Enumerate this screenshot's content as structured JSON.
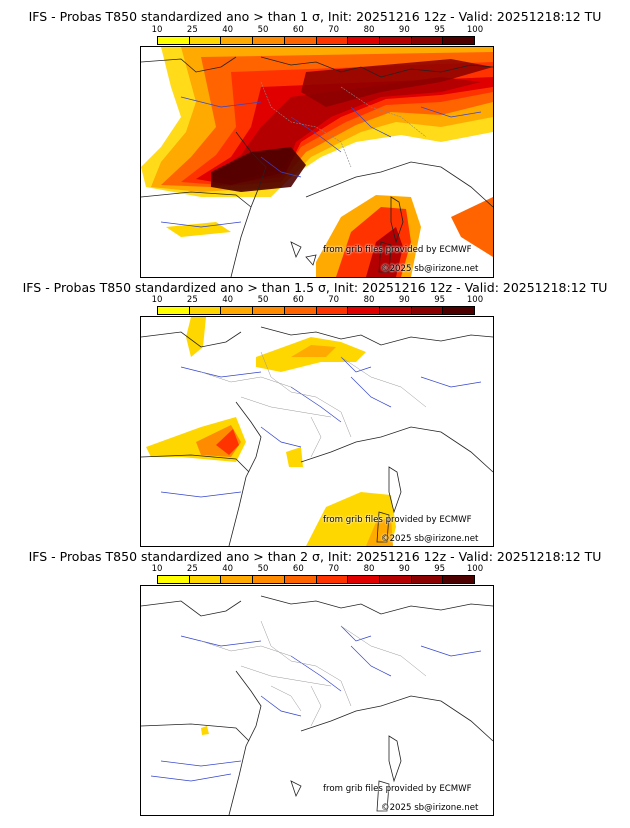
{
  "colorbar": {
    "ticks": [
      "10",
      "25",
      "40",
      "50",
      "60",
      "70",
      "80",
      "90",
      "95",
      "100"
    ],
    "colors": [
      "#ffff00",
      "#ffd700",
      "#ffaa00",
      "#ff8c00",
      "#ff6400",
      "#ff3300",
      "#e00000",
      "#b40000",
      "#8b0000",
      "#4d0000"
    ]
  },
  "panels": [
    {
      "title": "IFS - Probas T850  standardized ano > than 1 σ, Init: 20251216 12z - Valid: 20251218:12 TU",
      "credit_source": "from grib files provided by ECMWF",
      "credit_copy": "©2025 sb@irizone.net"
    },
    {
      "title": "IFS - Probas T850  standardized ano > than 1.5 σ, Init: 20251216 12z - Valid: 20251218:12 TU",
      "credit_source": "from grib files provided by ECMWF",
      "credit_copy": "©2025 sb@irizone.net"
    },
    {
      "title": "IFS - Probas T850  standardized ano > than 2 σ, Init: 20251216 12z - Valid: 20251218:12 TU",
      "credit_source": "from grib files provided by ECMWF",
      "credit_copy": "©2025 sb@irizone.net"
    }
  ]
}
